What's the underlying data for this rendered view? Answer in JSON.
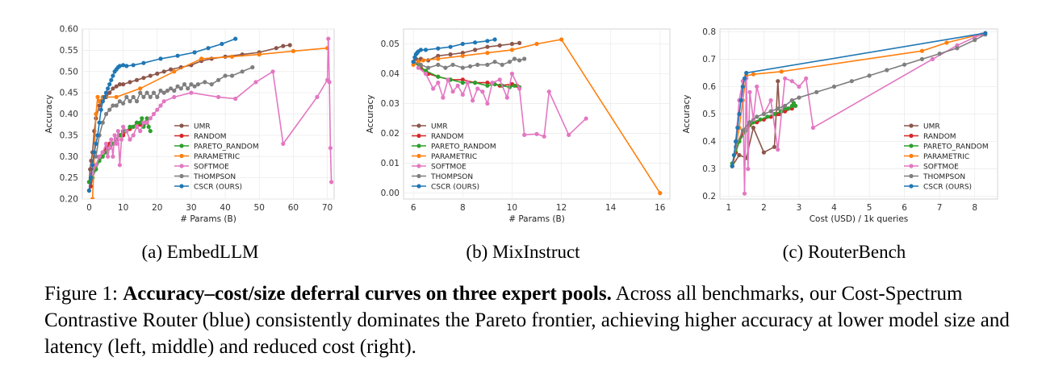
{
  "series_colors": {
    "UMR": "#8c564b",
    "RANDOM": "#d62728",
    "PARETO_RANDOM": "#2ca02c",
    "PARAMETRIC": "#ff7f0e",
    "SOFTMOE": "#e377c2",
    "THOMPSON": "#7f7f7f",
    "CSCR (OURS)": "#1f77b4"
  },
  "legend": [
    "UMR",
    "RANDOM",
    "PARETO_RANDOM",
    "PARAMETRIC",
    "SOFTMOE",
    "THOMPSON",
    "CSCR (OURS)"
  ],
  "subcaptions": [
    "(a) EmbedLLM",
    "(b) MixInstruct",
    "(c) RouterBench"
  ],
  "caption": {
    "prefix": "Figure 1: ",
    "bold": "Accuracy–cost/size deferral curves on three expert pools.",
    "rest": " Across all benchmarks, our Cost-Spectrum Contrastive Router (blue) consistently dominates the Pareto frontier, achieving higher accuracy at lower model size and latency (left, middle) and reduced cost (right)."
  },
  "chart_data": [
    {
      "type": "line",
      "xlabel": "# Params (B)",
      "ylabel": "Accuracy",
      "xlim": [
        -2,
        72
      ],
      "ylim": [
        0.2,
        0.6
      ],
      "xticks": [
        0,
        10,
        20,
        30,
        40,
        50,
        60,
        70
      ],
      "yticks": [
        0.2,
        0.25,
        0.3,
        0.35,
        0.4,
        0.45,
        0.5,
        0.55,
        0.6
      ],
      "ytick_labels": [
        "0.20",
        "0.25",
        "0.30",
        "0.35",
        "0.40",
        "0.45",
        "0.50",
        "0.55",
        "0.60"
      ],
      "grid": true,
      "legend_position": "bottom-right",
      "series": [
        {
          "name": "UMR",
          "x": [
            0,
            0.3,
            0.6,
            1,
            1.5,
            2,
            3,
            4,
            5,
            6,
            7,
            8,
            9,
            10,
            12,
            14,
            16,
            18,
            20,
            22,
            24,
            27,
            30,
            33,
            36,
            40,
            45,
            50,
            55,
            57,
            59
          ],
          "y": [
            0.24,
            0.27,
            0.29,
            0.31,
            0.36,
            0.39,
            0.42,
            0.43,
            0.44,
            0.45,
            0.46,
            0.465,
            0.47,
            0.47,
            0.475,
            0.48,
            0.485,
            0.49,
            0.495,
            0.5,
            0.505,
            0.51,
            0.515,
            0.525,
            0.53,
            0.535,
            0.54,
            0.545,
            0.555,
            0.56,
            0.562
          ]
        },
        {
          "name": "RANDOM",
          "x": [
            0,
            0.5,
            1,
            1.5,
            2,
            3,
            4,
            5,
            6,
            7,
            8,
            9,
            10,
            11,
            12,
            13,
            14,
            15,
            16,
            17
          ],
          "y": [
            0.22,
            0.23,
            0.25,
            0.27,
            0.28,
            0.3,
            0.31,
            0.32,
            0.33,
            0.33,
            0.34,
            0.35,
            0.35,
            0.36,
            0.365,
            0.37,
            0.37,
            0.375,
            0.375,
            0.38
          ]
        },
        {
          "name": "PARETO_RANDOM",
          "x": [
            0,
            1,
            2,
            3,
            4,
            5,
            6,
            7,
            8,
            9,
            10,
            11,
            12,
            13,
            14,
            15,
            15.5,
            16,
            16.5,
            17,
            17.5,
            18
          ],
          "y": [
            0.24,
            0.25,
            0.27,
            0.29,
            0.3,
            0.31,
            0.32,
            0.33,
            0.34,
            0.35,
            0.36,
            0.36,
            0.37,
            0.37,
            0.38,
            0.38,
            0.39,
            0.37,
            0.38,
            0.39,
            0.37,
            0.36
          ]
        },
        {
          "name": "PARAMETRIC",
          "x": [
            0,
            1,
            1.5,
            2,
            2.5,
            3,
            4,
            8,
            15,
            25,
            33,
            42,
            50,
            60,
            70
          ],
          "y": [
            0.16,
            0.2,
            0.3,
            0.4,
            0.44,
            0.43,
            0.44,
            0.44,
            0.46,
            0.5,
            0.53,
            0.535,
            0.54,
            0.548,
            0.555
          ]
        },
        {
          "name": "SOFTMOE",
          "x": [
            1,
            2,
            3,
            4,
            5,
            5.5,
            6,
            6.5,
            7,
            7.5,
            8,
            8.5,
            9,
            9.5,
            10,
            11,
            12,
            13,
            14,
            15,
            16,
            17,
            18,
            19,
            20,
            21,
            22,
            25,
            30,
            38,
            43,
            49,
            54,
            57,
            67,
            70,
            70.3,
            70.6,
            70.9,
            71.2
          ],
          "y": [
            0.26,
            0.28,
            0.3,
            0.31,
            0.33,
            0.3,
            0.32,
            0.34,
            0.3,
            0.35,
            0.33,
            0.36,
            0.28,
            0.34,
            0.37,
            0.36,
            0.34,
            0.35,
            0.37,
            0.36,
            0.38,
            0.38,
            0.39,
            0.4,
            0.41,
            0.42,
            0.43,
            0.44,
            0.45,
            0.44,
            0.436,
            0.475,
            0.5,
            0.33,
            0.44,
            0.48,
            0.577,
            0.475,
            0.32,
            0.24
          ]
        },
        {
          "name": "THOMPSON",
          "x": [
            2,
            3,
            4,
            5,
            6,
            7,
            8,
            9,
            10,
            11,
            12,
            13,
            14,
            15,
            16,
            17,
            18,
            19,
            20,
            21,
            22,
            23,
            24,
            25,
            26,
            27,
            28,
            29,
            30,
            31,
            32,
            34,
            36,
            38,
            40,
            42,
            45,
            48
          ],
          "y": [
            0.3,
            0.35,
            0.38,
            0.4,
            0.41,
            0.42,
            0.42,
            0.43,
            0.425,
            0.44,
            0.43,
            0.44,
            0.43,
            0.45,
            0.44,
            0.45,
            0.44,
            0.45,
            0.44,
            0.455,
            0.45,
            0.455,
            0.46,
            0.455,
            0.465,
            0.46,
            0.47,
            0.46,
            0.47,
            0.465,
            0.47,
            0.475,
            0.47,
            0.48,
            0.49,
            0.49,
            0.5,
            0.51
          ]
        },
        {
          "name": "CSCR (OURS)",
          "x": [
            0,
            0.5,
            1,
            1.5,
            2,
            2.5,
            3,
            3.5,
            4,
            4.5,
            5,
            5.5,
            6,
            6.5,
            7,
            7.5,
            8,
            8.5,
            9,
            10,
            11,
            13,
            16,
            21,
            26,
            31,
            35,
            39,
            43
          ],
          "y": [
            0.22,
            0.25,
            0.28,
            0.31,
            0.33,
            0.35,
            0.38,
            0.41,
            0.43,
            0.44,
            0.45,
            0.46,
            0.47,
            0.48,
            0.49,
            0.5,
            0.505,
            0.51,
            0.513,
            0.515,
            0.513,
            0.515,
            0.52,
            0.53,
            0.537,
            0.545,
            0.555,
            0.565,
            0.577
          ]
        }
      ]
    },
    {
      "type": "line",
      "xlabel": "# Params (B)",
      "ylabel": "Accuracy",
      "xlim": [
        5.6,
        16.4
      ],
      "ylim": [
        -0.002,
        0.055
      ],
      "xticks": [
        6,
        8,
        10,
        12,
        14,
        16
      ],
      "yticks": [
        0.0,
        0.01,
        0.02,
        0.03,
        0.04,
        0.05
      ],
      "ytick_labels": [
        "0.00",
        "0.01",
        "0.02",
        "0.03",
        "0.04",
        "0.05"
      ],
      "grid": true,
      "legend_position": "bottom-left",
      "series": [
        {
          "name": "UMR",
          "x": [
            6,
            6.1,
            6.3,
            6.6,
            7,
            7.5,
            8,
            8.5,
            9,
            9.5,
            10,
            10.3
          ],
          "y": [
            0.044,
            0.045,
            0.045,
            0.0445,
            0.046,
            0.0465,
            0.047,
            0.048,
            0.049,
            0.0495,
            0.05,
            0.0503
          ]
        },
        {
          "name": "RANDOM",
          "x": [
            6,
            6.3,
            6.6,
            7,
            7.5,
            8,
            8.5,
            9,
            9.5,
            10,
            10.2
          ],
          "y": [
            0.044,
            0.042,
            0.04,
            0.039,
            0.038,
            0.038,
            0.037,
            0.037,
            0.036,
            0.0365,
            0.036
          ]
        },
        {
          "name": "PARETO_RANDOM",
          "x": [
            6,
            6.5,
            7,
            7.5,
            8,
            8.5,
            9,
            9.3,
            9.6,
            9.9,
            10.1,
            10.3
          ],
          "y": [
            0.044,
            0.041,
            0.039,
            0.038,
            0.037,
            0.037,
            0.036,
            0.0365,
            0.036,
            0.0355,
            0.036,
            0.0355
          ]
        },
        {
          "name": "PARAMETRIC",
          "x": [
            6,
            6.2,
            6.4,
            7,
            8,
            9,
            10,
            11,
            12,
            16
          ],
          "y": [
            0.043,
            0.044,
            0.0445,
            0.045,
            0.046,
            0.047,
            0.048,
            0.05,
            0.0515,
            0.0
          ]
        },
        {
          "name": "SOFTMOE",
          "x": [
            6.2,
            6.5,
            6.8,
            7,
            7.2,
            7.4,
            7.6,
            7.8,
            8,
            8.2,
            8.4,
            8.6,
            8.8,
            9,
            9.2,
            9.5,
            9.8,
            10,
            10.3,
            10.5,
            11,
            11.3,
            11.5,
            12.3,
            13
          ],
          "y": [
            0.042,
            0.04,
            0.035,
            0.037,
            0.032,
            0.038,
            0.034,
            0.036,
            0.033,
            0.037,
            0.031,
            0.035,
            0.034,
            0.03,
            0.037,
            0.038,
            0.032,
            0.04,
            0.035,
            0.0195,
            0.0198,
            0.019,
            0.034,
            0.0195,
            0.025
          ]
        },
        {
          "name": "THOMPSON",
          "x": [
            6,
            6.3,
            6.6,
            7,
            7.3,
            7.6,
            8,
            8.3,
            8.6,
            9,
            9.3,
            9.6,
            9.9,
            10.1,
            10.3,
            10.5
          ],
          "y": [
            0.044,
            0.043,
            0.042,
            0.043,
            0.042,
            0.043,
            0.042,
            0.0425,
            0.043,
            0.043,
            0.044,
            0.043,
            0.044,
            0.045,
            0.0445,
            0.045
          ]
        },
        {
          "name": "CSCR (OURS)",
          "x": [
            6,
            6.05,
            6.1,
            6.15,
            6.2,
            6.3,
            6.5,
            7,
            7.5,
            8,
            8.5,
            9,
            9.3
          ],
          "y": [
            0.044,
            0.0455,
            0.0465,
            0.047,
            0.0475,
            0.048,
            0.048,
            0.0485,
            0.049,
            0.05,
            0.0505,
            0.051,
            0.0515
          ]
        }
      ]
    },
    {
      "type": "line",
      "xlabel": "Cost (USD) / 1k queries",
      "ylabel": "Accuracy",
      "xlim": [
        0.75,
        8.65
      ],
      "ylim": [
        0.19,
        0.81
      ],
      "xticks": [
        1,
        2,
        3,
        4,
        5,
        6,
        7,
        8
      ],
      "yticks": [
        0.2,
        0.3,
        0.4,
        0.5,
        0.6,
        0.7,
        0.8
      ],
      "ytick_labels": [
        "0.2",
        "0.3",
        "0.4",
        "0.5",
        "0.6",
        "0.7",
        "0.8"
      ],
      "grid": true,
      "legend_position": "bottom-right",
      "series": [
        {
          "name": "UMR",
          "x": [
            1.1,
            1.3,
            1.5,
            1.7,
            2.0,
            2.3,
            2.4,
            2.45,
            2.5,
            2.7,
            2.9
          ],
          "y": [
            0.31,
            0.35,
            0.34,
            0.45,
            0.36,
            0.38,
            0.62,
            0.5,
            0.51,
            0.52,
            0.53
          ]
        },
        {
          "name": "RANDOM",
          "x": [
            1.1,
            1.2,
            1.3,
            1.4,
            1.6,
            1.8,
            2.0,
            2.2,
            2.4,
            2.6,
            2.8
          ],
          "y": [
            0.31,
            0.36,
            0.4,
            0.43,
            0.46,
            0.47,
            0.48,
            0.49,
            0.5,
            0.51,
            0.52
          ]
        },
        {
          "name": "PARETO_RANDOM",
          "x": [
            1.1,
            1.3,
            1.5,
            1.7,
            1.9,
            2.1,
            2.3,
            2.5,
            2.6,
            2.7,
            2.8,
            2.85,
            2.9
          ],
          "y": [
            0.32,
            0.4,
            0.44,
            0.47,
            0.48,
            0.49,
            0.5,
            0.51,
            0.52,
            0.52,
            0.53,
            0.54,
            0.53
          ]
        },
        {
          "name": "PARAMETRIC",
          "x": [
            1.1,
            1.3,
            1.4,
            1.5,
            1.7,
            2.5,
            6.5,
            7.2,
            8.3
          ],
          "y": [
            0.31,
            0.45,
            0.55,
            0.64,
            0.645,
            0.655,
            0.73,
            0.76,
            0.795
          ]
        },
        {
          "name": "SOFTMOE",
          "x": [
            1.2,
            1.3,
            1.4,
            1.45,
            1.5,
            1.55,
            1.6,
            1.7,
            1.8,
            2.0,
            2.2,
            2.4,
            2.6,
            2.8,
            3.0,
            3.2,
            3.4,
            6.8,
            7.5,
            8.0,
            8.2
          ],
          "y": [
            0.4,
            0.55,
            0.62,
            0.21,
            0.63,
            0.3,
            0.58,
            0.48,
            0.6,
            0.5,
            0.55,
            0.37,
            0.63,
            0.62,
            0.6,
            0.63,
            0.45,
            0.7,
            0.75,
            0.78,
            0.79
          ]
        },
        {
          "name": "THOMPSON",
          "x": [
            1.2,
            1.4,
            1.6,
            1.8,
            2.0,
            2.2,
            2.4,
            2.6,
            2.8,
            3.0,
            3.5,
            4.0,
            4.5,
            5.0,
            5.5,
            6.0,
            6.5,
            7.0,
            7.5,
            8.0,
            8.3
          ],
          "y": [
            0.38,
            0.44,
            0.47,
            0.49,
            0.5,
            0.51,
            0.52,
            0.53,
            0.55,
            0.56,
            0.58,
            0.6,
            0.62,
            0.64,
            0.66,
            0.68,
            0.7,
            0.72,
            0.74,
            0.77,
            0.79
          ]
        },
        {
          "name": "CSCR (OURS)",
          "x": [
            1.1,
            1.15,
            1.2,
            1.25,
            1.3,
            1.35,
            1.4,
            1.45,
            1.5,
            8.3
          ],
          "y": [
            0.31,
            0.35,
            0.4,
            0.45,
            0.5,
            0.55,
            0.6,
            0.63,
            0.65,
            0.795
          ]
        }
      ]
    }
  ]
}
